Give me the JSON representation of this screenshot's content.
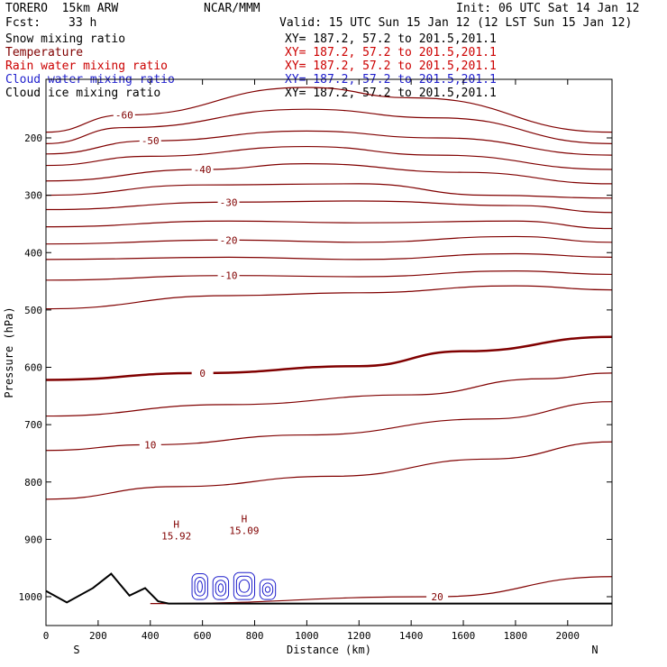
{
  "header": {
    "model": "TORERO  15km ARW",
    "center": "NCAR/MMM",
    "init": "Init: 06 UTC Sat 14 Jan 12",
    "fcst_label": "Fcst:",
    "fcst_value": "33 h",
    "valid": "Valid: 15 UTC Sun 15 Jan 12 (12 LST Sun 15 Jan 12)"
  },
  "colors": {
    "temperature": "#800000",
    "rain": "#cc0000",
    "cloud_water": "#1f1fcc",
    "black": "#000000"
  },
  "fields": [
    {
      "label": "Snow mixing ratio",
      "xy": "XY= 187.2, 57.2 to 201.5,201.1",
      "color": "#000000"
    },
    {
      "label": "Temperature",
      "xy": "XY= 187.2, 57.2 to 201.5,201.1",
      "color": "#800000"
    },
    {
      "label": "Rain water mixing ratio",
      "xy": "XY= 187.2, 57.2 to 201.5,201.1",
      "color": "#cc0000"
    },
    {
      "label": "Cloud water mixing ratio",
      "xy": "XY= 187.2, 57.2 to 201.5,201.1",
      "color": "#1f1fcc"
    },
    {
      "label": "Cloud ice mixing ratio",
      "xy": "XY= 187.2, 57.2 to 201.5,201.1",
      "color": "#000000"
    }
  ],
  "chart_data": {
    "type": "line",
    "subtype": "vertical cross-section contour plot",
    "xlabel": "Distance (km)",
    "ylabel": "Pressure (hPa)",
    "xlim": [
      0,
      2170
    ],
    "ylim": [
      1045,
      100
    ],
    "x_ticks": [
      "0",
      "200",
      "400",
      "600",
      "800",
      "1000",
      "1200",
      "1400",
      "1600",
      "1800",
      "2000"
    ],
    "x_tick_values": [
      0,
      200,
      400,
      600,
      800,
      1000,
      1200,
      1400,
      1600,
      1800,
      2000
    ],
    "y_ticks": [
      "200",
      "300",
      "400",
      "500",
      "600",
      "700",
      "800",
      "900",
      "1000"
    ],
    "y_tick_values": [
      200,
      300,
      400,
      500,
      600,
      700,
      800,
      900,
      1000
    ],
    "axis_ends": {
      "left": "S",
      "right": "N"
    },
    "temperature_contours_c": [
      {
        "level": -60,
        "y": [
          [
            0,
            190
          ],
          [
            300,
            160
          ],
          [
            1000,
            112
          ],
          [
            1400,
            130
          ],
          [
            2170,
            190
          ]
        ]
      },
      {
        "level": -55,
        "y": [
          [
            0,
            210
          ],
          [
            300,
            182
          ],
          [
            1000,
            150
          ],
          [
            1500,
            165
          ],
          [
            2170,
            210
          ]
        ]
      },
      {
        "level": -50,
        "y": [
          [
            0,
            228
          ],
          [
            400,
            205
          ],
          [
            1000,
            188
          ],
          [
            1500,
            200
          ],
          [
            2170,
            230
          ]
        ]
      },
      {
        "level": -45,
        "y": [
          [
            0,
            248
          ],
          [
            400,
            232
          ],
          [
            1000,
            215
          ],
          [
            1500,
            230
          ],
          [
            2170,
            255
          ]
        ]
      },
      {
        "level": -40,
        "y": [
          [
            0,
            275
          ],
          [
            600,
            255
          ],
          [
            1000,
            245
          ],
          [
            1600,
            260
          ],
          [
            2170,
            280
          ]
        ]
      },
      {
        "level": -35,
        "y": [
          [
            0,
            300
          ],
          [
            600,
            282
          ],
          [
            1200,
            280
          ],
          [
            1700,
            300
          ],
          [
            2170,
            305
          ]
        ]
      },
      {
        "level": -30,
        "y": [
          [
            0,
            325
          ],
          [
            700,
            312
          ],
          [
            1200,
            310
          ],
          [
            1800,
            318
          ],
          [
            2170,
            330
          ]
        ]
      },
      {
        "level": -25,
        "y": [
          [
            0,
            355
          ],
          [
            700,
            345
          ],
          [
            1200,
            348
          ],
          [
            1800,
            345
          ],
          [
            2170,
            358
          ]
        ]
      },
      {
        "level": -20,
        "y": [
          [
            0,
            385
          ],
          [
            700,
            378
          ],
          [
            1200,
            382
          ],
          [
            1800,
            372
          ],
          [
            2170,
            382
          ]
        ]
      },
      {
        "level": -15,
        "y": [
          [
            0,
            412
          ],
          [
            700,
            408
          ],
          [
            1200,
            412
          ],
          [
            1800,
            402
          ],
          [
            2170,
            408
          ]
        ]
      },
      {
        "level": -10,
        "y": [
          [
            0,
            448
          ],
          [
            700,
            440
          ],
          [
            1200,
            442
          ],
          [
            1800,
            432
          ],
          [
            2170,
            438
          ]
        ]
      },
      {
        "level": -5,
        "y": [
          [
            0,
            498
          ],
          [
            700,
            475
          ],
          [
            1200,
            470
          ],
          [
            1800,
            458
          ],
          [
            2170,
            465
          ]
        ]
      },
      {
        "level": 0,
        "y": [
          [
            0,
            622
          ],
          [
            600,
            610
          ],
          [
            1200,
            598
          ],
          [
            1600,
            572
          ],
          [
            2170,
            547
          ]
        ]
      },
      {
        "level": 5,
        "y": [
          [
            0,
            685
          ],
          [
            700,
            665
          ],
          [
            1400,
            648
          ],
          [
            1900,
            620
          ],
          [
            2170,
            610
          ]
        ]
      },
      {
        "level": 10,
        "y": [
          [
            0,
            745
          ],
          [
            400,
            735
          ],
          [
            1000,
            718
          ],
          [
            1700,
            690
          ],
          [
            2170,
            660
          ]
        ]
      },
      {
        "level": 15,
        "y": [
          [
            0,
            830
          ],
          [
            500,
            808
          ],
          [
            1100,
            790
          ],
          [
            1700,
            760
          ],
          [
            2170,
            730
          ]
        ]
      },
      {
        "level": 20,
        "y": [
          [
            400,
            1012
          ],
          [
            1500,
            1000
          ],
          [
            2170,
            965
          ]
        ]
      }
    ],
    "maxima": [
      {
        "label": "H",
        "value": "15.92",
        "x": 500,
        "y": 880
      },
      {
        "label": "H",
        "value": "15.09",
        "x": 760,
        "y": 870
      }
    ],
    "terrain_surface_hpa": [
      [
        0,
        990
      ],
      [
        80,
        1010
      ],
      [
        180,
        985
      ],
      [
        250,
        960
      ],
      [
        320,
        998
      ],
      [
        380,
        985
      ],
      [
        430,
        1008
      ],
      [
        470,
        1012
      ],
      [
        2170,
        1012
      ]
    ]
  }
}
